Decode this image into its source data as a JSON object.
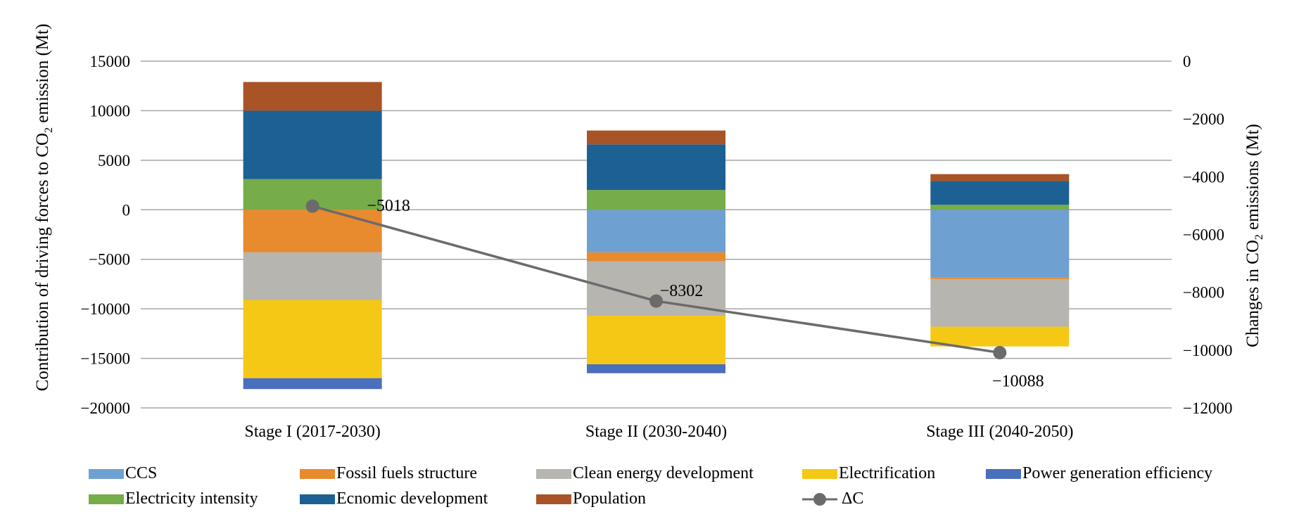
{
  "chart_data": {
    "type": "bar",
    "stacked": true,
    "categories": [
      "Stage I (2017-2030)",
      "Stage II (2030-2040)",
      "Stage III (2040-2050)"
    ],
    "series": [
      {
        "name": "CCS",
        "color": "#6fa0d2",
        "values": [
          0,
          -4300,
          -6800
        ]
      },
      {
        "name": "Fossil fuels structure",
        "color": "#e88a2e",
        "values": [
          -4300,
          -900,
          -200
        ]
      },
      {
        "name": "Clean energy development",
        "color": "#b7b5b0",
        "values": [
          -4800,
          -5500,
          -4800
        ]
      },
      {
        "name": "Electrification",
        "color": "#f5c816",
        "values": [
          -7900,
          -4900,
          -2000
        ]
      },
      {
        "name": "Power generation efficiency",
        "color": "#4a6fbc",
        "values": [
          -1100,
          -900,
          0
        ]
      },
      {
        "name": "Electricity intensity",
        "color": "#76ad48",
        "values": [
          3100,
          2000,
          500
        ]
      },
      {
        "name": "Ecnomic development",
        "color": "#1d6093",
        "values": [
          6900,
          4600,
          2400
        ]
      },
      {
        "name": "Population",
        "color": "#a95427",
        "values": [
          2900,
          1400,
          700
        ]
      }
    ],
    "line_series": {
      "name": "ΔC",
      "axis": "right",
      "color": "#6b6b6b",
      "values": [
        -5018,
        -8302,
        -10088
      ],
      "labels": [
        "−5018",
        "−8302",
        "−10088"
      ]
    },
    "ylabel": "Contribution of driving forces to CO2 emission (Mt)",
    "ylabel_parts": {
      "pre": "Contribution of driving forces to CO",
      "sub": "2",
      "post": " emission (Mt)"
    },
    "y2label": "Changes in CO2 emissions (Mt)",
    "y2label_parts": {
      "pre": "Changes in CO",
      "sub": "2",
      "post": " emissions (Mt)"
    },
    "ylim": [
      -20000,
      15000
    ],
    "y2lim": [
      -12000,
      0
    ],
    "yticks": [
      15000,
      10000,
      5000,
      0,
      -5000,
      -10000,
      -15000,
      -20000
    ],
    "ytick_labels": [
      "15000",
      "10000",
      "5000",
      "0",
      "−5000",
      "−10000",
      "−15000",
      "−20000"
    ],
    "y2ticks": [
      0,
      -2000,
      -4000,
      -6000,
      -8000,
      -10000,
      -12000
    ],
    "y2tick_labels": [
      "0",
      "−2000",
      "−4000",
      "−6000",
      "−8000",
      "−10000",
      "−12000"
    ],
    "grid": true,
    "legend_position": "bottom"
  }
}
